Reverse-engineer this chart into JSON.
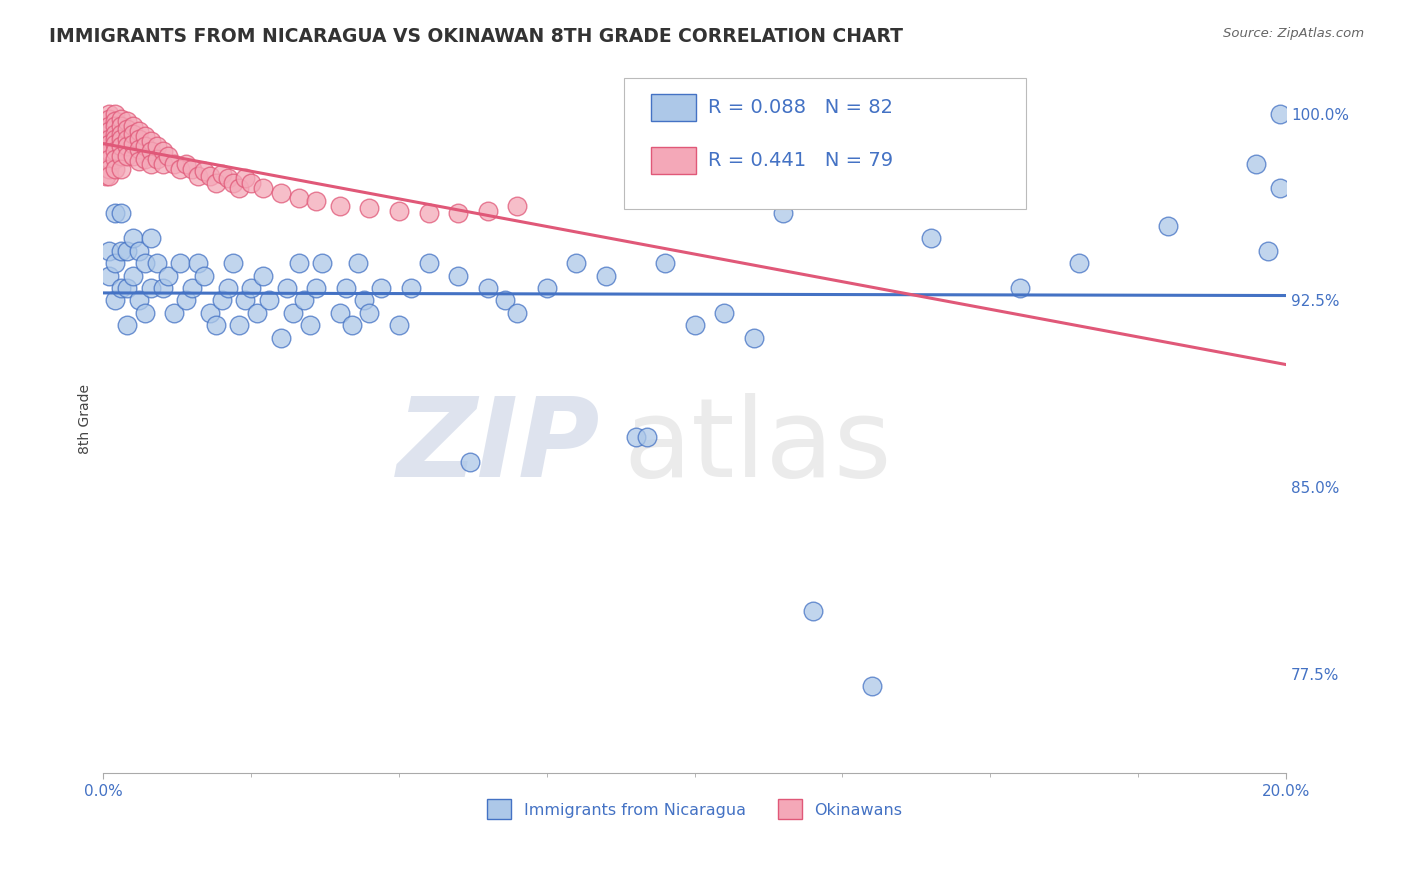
{
  "title": "IMMIGRANTS FROM NICARAGUA VS OKINAWAN 8TH GRADE CORRELATION CHART",
  "source_text": "Source: ZipAtlas.com",
  "ylabel": "8th Grade",
  "x_min": 0.0,
  "x_max": 0.2,
  "y_min": 0.735,
  "y_max": 1.02,
  "y_ticks": [
    0.775,
    0.85,
    0.925,
    1.0
  ],
  "y_tick_labels": [
    "77.5%",
    "85.0%",
    "92.5%",
    "100.0%"
  ],
  "x_ticks": [
    0.0,
    0.2
  ],
  "x_tick_labels": [
    "0.0%",
    "20.0%"
  ],
  "blue_r": 0.088,
  "blue_n": 82,
  "pink_r": 0.441,
  "pink_n": 79,
  "blue_color": "#adc8e8",
  "blue_line_color": "#4472c4",
  "pink_color": "#f4a8b8",
  "pink_line_color": "#e05878",
  "legend_label_blue": "Immigrants from Nicaragua",
  "legend_label_pink": "Okinawans",
  "watermark_zip": "ZIP",
  "watermark_atlas": "atlas",
  "background_color": "#ffffff",
  "grid_color": "#cccccc",
  "blue_scatter_x": [
    0.001,
    0.001,
    0.002,
    0.002,
    0.002,
    0.003,
    0.003,
    0.003,
    0.004,
    0.004,
    0.004,
    0.005,
    0.005,
    0.006,
    0.006,
    0.007,
    0.007,
    0.008,
    0.008,
    0.009,
    0.01,
    0.011,
    0.012,
    0.013,
    0.014,
    0.015,
    0.016,
    0.017,
    0.018,
    0.019,
    0.02,
    0.021,
    0.022,
    0.023,
    0.024,
    0.025,
    0.026,
    0.027,
    0.028,
    0.03,
    0.031,
    0.032,
    0.033,
    0.034,
    0.035,
    0.036,
    0.037,
    0.04,
    0.041,
    0.042,
    0.043,
    0.044,
    0.045,
    0.047,
    0.05,
    0.052,
    0.055,
    0.06,
    0.062,
    0.065,
    0.068,
    0.07,
    0.075,
    0.08,
    0.085,
    0.09,
    0.092,
    0.095,
    0.1,
    0.105,
    0.11,
    0.115,
    0.12,
    0.13,
    0.14,
    0.155,
    0.165,
    0.18,
    0.195,
    0.197,
    0.199,
    0.199
  ],
  "blue_scatter_y": [
    0.945,
    0.935,
    0.96,
    0.94,
    0.925,
    0.96,
    0.945,
    0.93,
    0.945,
    0.93,
    0.915,
    0.95,
    0.935,
    0.945,
    0.925,
    0.94,
    0.92,
    0.95,
    0.93,
    0.94,
    0.93,
    0.935,
    0.92,
    0.94,
    0.925,
    0.93,
    0.94,
    0.935,
    0.92,
    0.915,
    0.925,
    0.93,
    0.94,
    0.915,
    0.925,
    0.93,
    0.92,
    0.935,
    0.925,
    0.91,
    0.93,
    0.92,
    0.94,
    0.925,
    0.915,
    0.93,
    0.94,
    0.92,
    0.93,
    0.915,
    0.94,
    0.925,
    0.92,
    0.93,
    0.915,
    0.93,
    0.94,
    0.935,
    0.86,
    0.93,
    0.925,
    0.92,
    0.93,
    0.94,
    0.935,
    0.87,
    0.87,
    0.94,
    0.915,
    0.92,
    0.91,
    0.96,
    0.8,
    0.77,
    0.95,
    0.93,
    0.94,
    0.955,
    0.98,
    0.945,
    0.97,
    1.0
  ],
  "pink_scatter_x": [
    0.0005,
    0.0005,
    0.0005,
    0.001,
    0.001,
    0.001,
    0.001,
    0.001,
    0.001,
    0.001,
    0.001,
    0.001,
    0.001,
    0.002,
    0.002,
    0.002,
    0.002,
    0.002,
    0.002,
    0.002,
    0.002,
    0.002,
    0.003,
    0.003,
    0.003,
    0.003,
    0.003,
    0.003,
    0.003,
    0.004,
    0.004,
    0.004,
    0.004,
    0.004,
    0.005,
    0.005,
    0.005,
    0.005,
    0.006,
    0.006,
    0.006,
    0.006,
    0.007,
    0.007,
    0.007,
    0.008,
    0.008,
    0.008,
    0.009,
    0.009,
    0.01,
    0.01,
    0.011,
    0.012,
    0.013,
    0.014,
    0.015,
    0.016,
    0.017,
    0.018,
    0.019,
    0.02,
    0.021,
    0.022,
    0.023,
    0.024,
    0.025,
    0.027,
    0.03,
    0.033,
    0.036,
    0.04,
    0.045,
    0.05,
    0.055,
    0.06,
    0.065,
    0.07,
    0.095
  ],
  "pink_scatter_y": [
    0.99,
    0.985,
    0.975,
    1.0,
    0.998,
    0.995,
    0.993,
    0.99,
    0.988,
    0.985,
    0.982,
    0.978,
    0.975,
    1.0,
    0.997,
    0.995,
    0.992,
    0.99,
    0.988,
    0.985,
    0.982,
    0.978,
    0.998,
    0.995,
    0.992,
    0.99,
    0.987,
    0.983,
    0.978,
    0.997,
    0.994,
    0.99,
    0.987,
    0.983,
    0.995,
    0.992,
    0.988,
    0.983,
    0.993,
    0.99,
    0.986,
    0.981,
    0.991,
    0.987,
    0.982,
    0.989,
    0.985,
    0.98,
    0.987,
    0.982,
    0.985,
    0.98,
    0.983,
    0.98,
    0.978,
    0.98,
    0.978,
    0.975,
    0.977,
    0.975,
    0.972,
    0.976,
    0.974,
    0.972,
    0.97,
    0.974,
    0.972,
    0.97,
    0.968,
    0.966,
    0.965,
    0.963,
    0.962,
    0.961,
    0.96,
    0.96,
    0.961,
    0.963,
    0.97
  ]
}
